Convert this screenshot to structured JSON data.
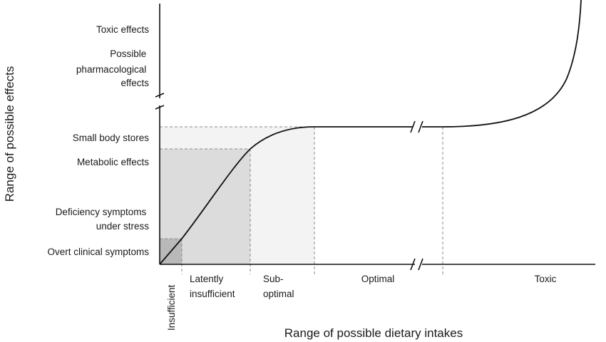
{
  "y_axis": {
    "title": "Range of possible effects",
    "upper_labels": [
      {
        "lines": [
          "Toxic effects"
        ]
      },
      {
        "lines": [
          "Possible",
          "pharmacological",
          "effects"
        ]
      }
    ],
    "lower_labels": [
      {
        "lines": [
          "Small body stores"
        ]
      },
      {
        "lines": [
          "Metabolic effects"
        ]
      },
      {
        "lines": [
          "Deficiency symptoms",
          "under stress"
        ]
      },
      {
        "lines": [
          "Overt clinical symptoms"
        ]
      }
    ]
  },
  "x_axis": {
    "title": "Range of possible dietary intakes",
    "zones": [
      {
        "id": "insufficient",
        "lines": [
          "Insufficient"
        ],
        "rotated": true
      },
      {
        "id": "latently-insufficient",
        "lines": [
          "Latently",
          "insufficient"
        ]
      },
      {
        "id": "sub-optimal",
        "lines": [
          "Sub-",
          "optimal"
        ]
      },
      {
        "id": "optimal",
        "lines": [
          "Optimal"
        ]
      },
      {
        "id": "toxic",
        "lines": [
          "Toxic"
        ]
      }
    ]
  },
  "colors": {
    "insufficient_fill": "#b9b9b9",
    "latent_fill": "#dcdcdc",
    "suboptimal_fill": "#f3f3f3",
    "axis": "#111111",
    "guide": "#8a8a8a"
  }
}
